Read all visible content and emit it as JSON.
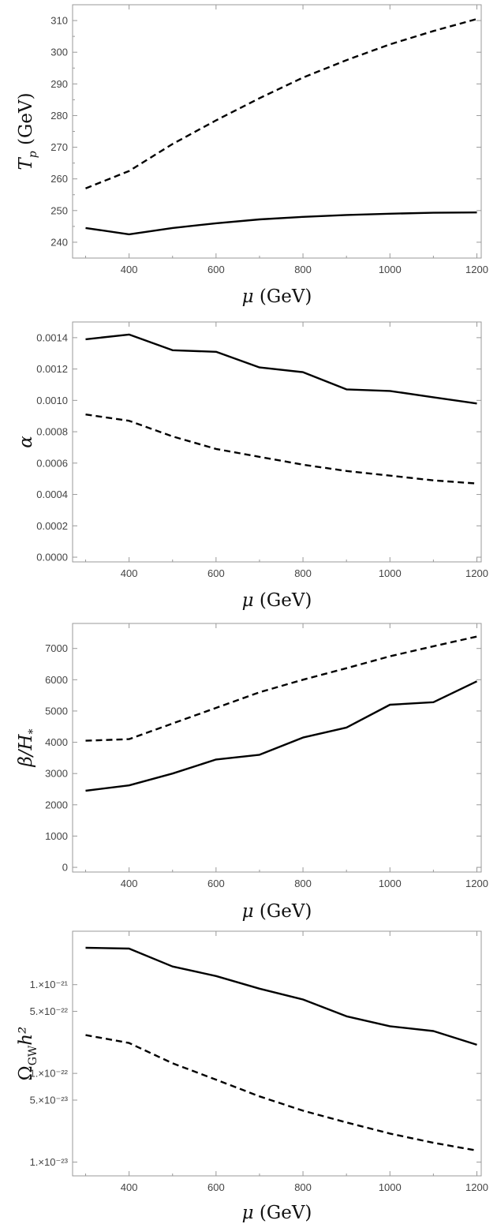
{
  "chart_data": [
    {
      "type": "line",
      "ylabel": {
        "main": "T",
        "sub": "p",
        "unit": " (GeV)"
      },
      "xlabel": {
        "main": "μ",
        "unit": " (GeV)"
      },
      "xlim": [
        270,
        1210
      ],
      "ylim": [
        235,
        315
      ],
      "xticks": [
        400,
        600,
        800,
        1000,
        1200
      ],
      "yticks": [
        240,
        250,
        260,
        270,
        280,
        290,
        300,
        310
      ],
      "minor_yticks": [
        235,
        245,
        255,
        265,
        275,
        285,
        295,
        305
      ],
      "series": [
        {
          "style": "solid",
          "x": [
            300,
            400,
            500,
            600,
            700,
            800,
            900,
            1000,
            1100,
            1200
          ],
          "y": [
            244.5,
            242.5,
            244.5,
            246.0,
            247.2,
            248.0,
            248.6,
            249.0,
            249.3,
            249.4
          ]
        },
        {
          "style": "dashed",
          "x": [
            300,
            400,
            500,
            600,
            700,
            800,
            900,
            1000,
            1100,
            1200
          ],
          "y": [
            257,
            262.5,
            271,
            278.5,
            285.5,
            292,
            297.5,
            302.5,
            306.7,
            310.5
          ]
        }
      ]
    },
    {
      "type": "line",
      "ylabel": {
        "main": "α",
        "sub": "",
        "unit": ""
      },
      "xlabel": {
        "main": "μ",
        "unit": " (GeV)"
      },
      "xlim": [
        270,
        1210
      ],
      "ylim": [
        -3e-05,
        0.0015
      ],
      "xticks": [
        400,
        600,
        800,
        1000,
        1200
      ],
      "yticks": [
        0.0,
        0.0002,
        0.0004,
        0.0006,
        0.0008,
        0.001,
        0.0012,
        0.0014
      ],
      "ytick_labels": [
        "0.0000",
        "0.0002",
        "0.0004",
        "0.0006",
        "0.0008",
        "0.0010",
        "0.0012",
        "0.0014"
      ],
      "series": [
        {
          "style": "solid",
          "x": [
            300,
            400,
            500,
            600,
            700,
            800,
            900,
            1000,
            1100,
            1200
          ],
          "y": [
            0.00139,
            0.00142,
            0.00132,
            0.00131,
            0.00121,
            0.00118,
            0.00107,
            0.00106,
            0.00102,
            0.00098
          ]
        },
        {
          "style": "dashed",
          "x": [
            300,
            400,
            500,
            600,
            700,
            800,
            900,
            1000,
            1100,
            1200
          ],
          "y": [
            0.00091,
            0.00087,
            0.00077,
            0.00069,
            0.00064,
            0.00059,
            0.00055,
            0.00052,
            0.00049,
            0.00047
          ]
        }
      ]
    },
    {
      "type": "line",
      "ylabel": {
        "main": "β/H",
        "sub": "*",
        "unit": ""
      },
      "xlabel": {
        "main": "μ",
        "unit": " (GeV)"
      },
      "xlim": [
        270,
        1210
      ],
      "ylim": [
        -150,
        7800
      ],
      "xticks": [
        400,
        600,
        800,
        1000,
        1200
      ],
      "yticks": [
        0,
        1000,
        2000,
        3000,
        4000,
        5000,
        6000,
        7000
      ],
      "series": [
        {
          "style": "solid",
          "x": [
            300,
            400,
            500,
            600,
            700,
            800,
            900,
            1000,
            1100,
            1200
          ],
          "y": [
            2450,
            2620,
            3000,
            3450,
            3600,
            4150,
            4470,
            5200,
            5280,
            5950
          ]
        },
        {
          "style": "dashed",
          "x": [
            300,
            400,
            500,
            600,
            700,
            800,
            900,
            1000,
            1100,
            1200
          ],
          "y": [
            4050,
            4100,
            4600,
            5100,
            5600,
            6000,
            6370,
            6750,
            7070,
            7380
          ]
        }
      ]
    },
    {
      "type": "line",
      "log_y": true,
      "ylabel": {
        "main": "Ω",
        "sub": "GW",
        "unit": "h²"
      },
      "xlabel": {
        "main": "μ",
        "unit": " (GeV)"
      },
      "xlim": [
        270,
        1210
      ],
      "ylim": [
        7e-24,
        4e-21
      ],
      "xticks": [
        400,
        600,
        800,
        1000,
        1200
      ],
      "yticks": [
        1e-21,
        5e-22,
        1e-22,
        5e-23,
        1e-23
      ],
      "ytick_labels": [
        "1.×10⁻²¹",
        "5.×10⁻²²",
        "1.×10⁻²²",
        "5.×10⁻²³",
        "1.×10⁻²³"
      ],
      "series": [
        {
          "style": "solid",
          "x": [
            300,
            400,
            500,
            600,
            700,
            800,
            900,
            1000,
            1100,
            1200
          ],
          "y": [
            2.6e-21,
            2.55e-21,
            1.6e-21,
            1.25e-21,
            9e-22,
            6.8e-22,
            4.4e-22,
            3.4e-22,
            3e-22,
            2.1e-22
          ]
        },
        {
          "style": "dashed",
          "x": [
            300,
            400,
            500,
            600,
            700,
            800,
            900,
            1000,
            1100,
            1200
          ],
          "y": [
            2.7e-22,
            2.2e-22,
            1.3e-22,
            8.5e-23,
            5.5e-23,
            3.8e-23,
            2.8e-23,
            2.1e-23,
            1.65e-23,
            1.35e-23
          ]
        }
      ]
    }
  ]
}
